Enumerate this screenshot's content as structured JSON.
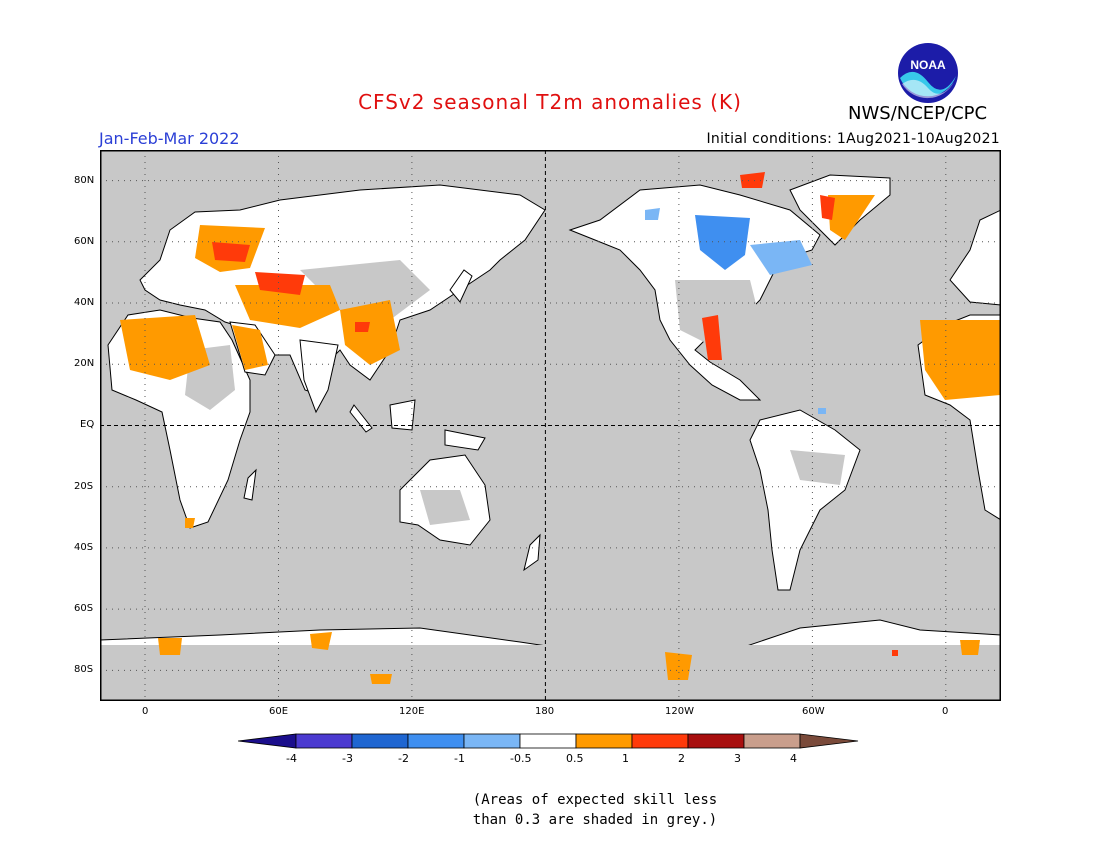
{
  "title": "CFSv2 seasonal T2m anomalies (K)",
  "agency": "NWS/NCEP/CPC",
  "logo_text": "NOAA",
  "period": "Jan-Feb-Mar 2022",
  "initial_conditions": "Initial conditions: 1Aug2021-10Aug2021",
  "lat_labels": [
    "80N",
    "60N",
    "40N",
    "20N",
    "EQ",
    "20S",
    "40S",
    "60S",
    "80S"
  ],
  "lon_labels": [
    "0",
    "60E",
    "120E",
    "180",
    "120W",
    "60W",
    "0"
  ],
  "colorbar": {
    "labels": [
      "-4",
      "-3",
      "-2",
      "-1",
      "-0.5",
      "0.5",
      "1",
      "2",
      "3",
      "4"
    ],
    "colors": [
      "#1b0e8c",
      "#4b3ad0",
      "#1f66d1",
      "#3f8ff0",
      "#7ab6f5",
      "#ffffff",
      "#ff9a00",
      "#ff3a0a",
      "#a80f0f",
      "#c99e8c",
      "#7a4a3a"
    ]
  },
  "colors": {
    "ocean_grey": "#c8c8c8",
    "land_no_anomaly": "#ffffff",
    "warm_1": "#ff9a00",
    "warm_2": "#ff3a0a",
    "cool_1": "#7ab6f5",
    "cool_2": "#3f8ff0",
    "title_red": "#e01010",
    "period_blue": "#2b3fd6"
  },
  "note_line1": "(Areas of expected skill less",
  "note_line2": "than 0.3 are shaded in grey.)"
}
